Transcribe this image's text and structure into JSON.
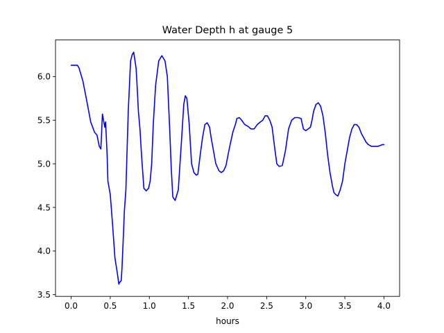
{
  "chart_data": {
    "type": "line",
    "title": "Water Depth h at gauge 5",
    "xlabel": "hours",
    "ylabel": "",
    "xlim": [
      -0.2,
      4.2
    ],
    "ylim": [
      3.48,
      6.42
    ],
    "xticks": [
      0.0,
      0.5,
      1.0,
      1.5,
      2.0,
      2.5,
      3.0,
      3.5,
      4.0
    ],
    "xtick_labels": [
      "0.0",
      "0.5",
      "1.0",
      "1.5",
      "2.0",
      "2.5",
      "3.0",
      "3.5",
      "4.0"
    ],
    "yticks": [
      3.5,
      4.0,
      4.5,
      5.0,
      5.5,
      6.0
    ],
    "ytick_labels": [
      "3.5",
      "4.0",
      "4.5",
      "5.0",
      "5.5",
      "6.0"
    ],
    "grid": false,
    "series": [
      {
        "color": "#0000ff",
        "x": [
          0.0,
          0.05,
          0.08,
          0.1,
          0.15,
          0.2,
          0.25,
          0.3,
          0.33,
          0.36,
          0.38,
          0.4,
          0.41,
          0.43,
          0.44,
          0.45,
          0.46,
          0.47,
          0.48,
          0.5,
          0.53,
          0.56,
          0.59,
          0.61,
          0.62,
          0.64,
          0.65,
          0.67,
          0.68,
          0.7,
          0.73,
          0.76,
          0.78,
          0.8,
          0.81,
          0.83,
          0.84,
          0.86,
          0.88,
          0.9,
          0.93,
          0.96,
          0.99,
          1.01,
          1.03,
          1.05,
          1.08,
          1.12,
          1.16,
          1.2,
          1.23,
          1.26,
          1.28,
          1.3,
          1.33,
          1.37,
          1.41,
          1.44,
          1.46,
          1.48,
          1.51,
          1.54,
          1.57,
          1.6,
          1.62,
          1.65,
          1.68,
          1.71,
          1.74,
          1.77,
          1.79,
          1.81,
          1.85,
          1.89,
          1.92,
          1.95,
          1.98,
          2.01,
          2.04,
          2.07,
          2.1,
          2.12,
          2.15,
          2.18,
          2.22,
          2.26,
          2.3,
          2.34,
          2.38,
          2.42,
          2.45,
          2.48,
          2.51,
          2.54,
          2.57,
          2.6,
          2.63,
          2.66,
          2.7,
          2.74,
          2.78,
          2.82,
          2.86,
          2.9,
          2.94,
          2.97,
          3.0,
          3.03,
          3.06,
          3.08,
          3.1,
          3.13,
          3.16,
          3.19,
          3.22,
          3.25,
          3.28,
          3.31,
          3.34,
          3.36,
          3.38,
          3.41,
          3.44,
          3.47,
          3.5,
          3.53,
          3.56,
          3.59,
          3.62,
          3.65,
          3.68,
          3.71,
          3.74,
          3.77,
          3.8,
          3.84,
          3.88,
          3.92,
          3.95,
          3.98,
          4.0
        ],
        "y": [
          6.13,
          6.13,
          6.13,
          6.1,
          5.95,
          5.72,
          5.48,
          5.36,
          5.33,
          5.2,
          5.17,
          5.57,
          5.52,
          5.42,
          5.48,
          5.3,
          5.1,
          4.8,
          4.75,
          4.65,
          4.3,
          3.92,
          3.75,
          3.62,
          3.64,
          3.66,
          3.8,
          4.22,
          4.45,
          4.7,
          5.6,
          6.18,
          6.25,
          6.28,
          6.22,
          6.1,
          5.95,
          5.6,
          5.4,
          5.1,
          4.72,
          4.69,
          4.72,
          4.8,
          5.0,
          5.45,
          5.9,
          6.18,
          6.24,
          6.18,
          6.0,
          5.4,
          4.95,
          4.62,
          4.58,
          4.7,
          5.25,
          5.68,
          5.78,
          5.75,
          5.45,
          5.0,
          4.9,
          4.87,
          4.88,
          5.1,
          5.3,
          5.45,
          5.47,
          5.42,
          5.3,
          5.2,
          5.0,
          4.92,
          4.9,
          4.92,
          4.98,
          5.12,
          5.25,
          5.37,
          5.45,
          5.52,
          5.53,
          5.5,
          5.45,
          5.43,
          5.4,
          5.4,
          5.45,
          5.48,
          5.5,
          5.55,
          5.55,
          5.5,
          5.42,
          5.2,
          5.0,
          4.97,
          4.98,
          5.15,
          5.4,
          5.5,
          5.53,
          5.53,
          5.52,
          5.4,
          5.38,
          5.4,
          5.42,
          5.5,
          5.6,
          5.68,
          5.7,
          5.66,
          5.55,
          5.35,
          5.1,
          4.9,
          4.75,
          4.67,
          4.65,
          4.63,
          4.7,
          4.8,
          5.0,
          5.15,
          5.3,
          5.4,
          5.45,
          5.45,
          5.42,
          5.35,
          5.3,
          5.25,
          5.22,
          5.2,
          5.2,
          5.2,
          5.21,
          5.22,
          5.22
        ]
      }
    ]
  }
}
